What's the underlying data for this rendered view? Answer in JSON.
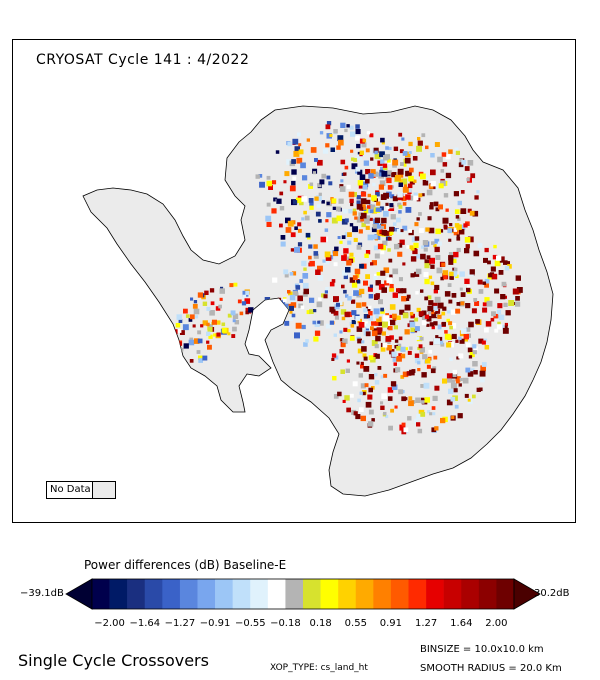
{
  "map": {
    "title": "CRYOSAT Cycle 141 : 4/2022",
    "nodata_label": "No Data",
    "nodata_color": "#ebebeb",
    "land_color": "#ebebeb"
  },
  "legend": {
    "title": "Power differences (dB) Baseline-E",
    "min_label": "−39.1dB",
    "max_label": "30.2dB",
    "ticks": [
      "−2.00",
      "−1.64",
      "−1.27",
      "−0.91",
      "−0.55",
      "−0.18",
      "0.18",
      "0.55",
      "0.91",
      "1.27",
      "1.64",
      "2.00"
    ],
    "colors": [
      "#00004c",
      "#001a66",
      "#1a2f80",
      "#2a4aa8",
      "#3a62c8",
      "#5a86de",
      "#79a6ee",
      "#9cc6f6",
      "#c0e0fa",
      "#e0f2fc",
      "#ffffff",
      "#b4b4b4",
      "#d7e22e",
      "#ffff00",
      "#ffd200",
      "#ffaa00",
      "#ff8000",
      "#ff5a00",
      "#ff2a00",
      "#e60000",
      "#c80000",
      "#aa0000",
      "#8c0000",
      "#6e0000"
    ],
    "low_color": "#000033",
    "high_color": "#4a0000"
  },
  "footer": {
    "left": "Single Cycle Crossovers",
    "xop_type": "XOP_TYPE: cs_land_ht",
    "binsize": "BINSIZE = 10.0x10.0 km",
    "smooth_radius": "SMOOTH RADIUS =  20.0 Km"
  }
}
